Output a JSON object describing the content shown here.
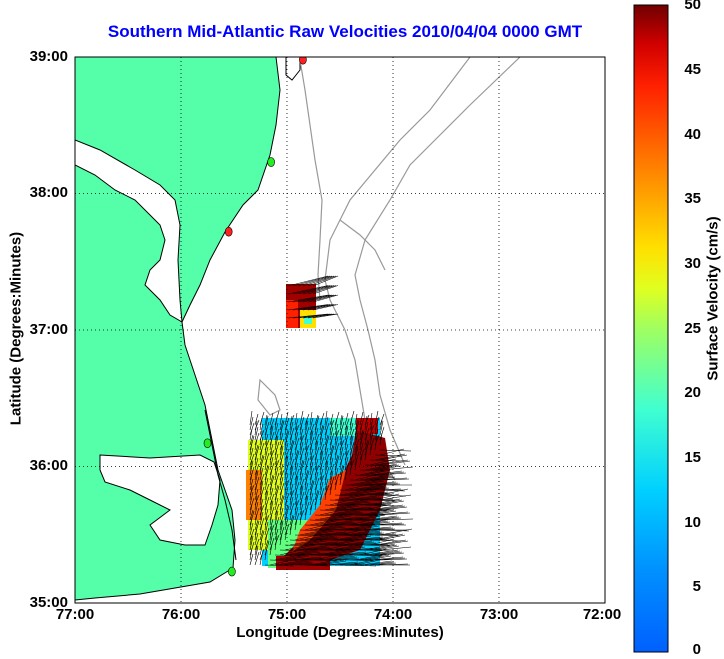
{
  "map": {
    "title": "Southern Mid-Atlantic Raw Velocities 2010/04/04 0000 GMT",
    "xlabel": "Longitude (Degrees:Minutes)",
    "ylabel": "Latitude (Degrees:Minutes)",
    "lon_ticks": [
      "77:00",
      "76:00",
      "75:00",
      "74:00",
      "73:00",
      "72:00"
    ],
    "lat_ticks": [
      "39:00",
      "38:00",
      "37:00",
      "36:00",
      "35:00"
    ],
    "lon_range": [
      -77,
      -72
    ],
    "lat_range": [
      35,
      39
    ],
    "land_color": "#55ffaa",
    "coast_color": "#000000",
    "bathymetry_color": "#999999",
    "grid": "dotted",
    "vector_color": "#000000",
    "stations": [
      {
        "lon": -74.85,
        "lat": 38.98,
        "color": "#ff2020"
      },
      {
        "lon": -75.15,
        "lat": 38.23,
        "color": "#22ee22"
      },
      {
        "lon": -75.55,
        "lat": 37.72,
        "color": "#ff2020"
      },
      {
        "lon": -75.75,
        "lat": 36.17,
        "color": "#22ee22"
      },
      {
        "lon": -75.52,
        "lat": 35.23,
        "color": "#22ee22"
      }
    ]
  },
  "colorbar": {
    "label": "Surface Velocity (cm/s)",
    "ticks": [
      "50",
      "45",
      "40",
      "35",
      "30",
      "25",
      "20",
      "15",
      "10",
      "5",
      "0"
    ],
    "range": [
      0,
      50
    ],
    "colormap": "jet"
  }
}
